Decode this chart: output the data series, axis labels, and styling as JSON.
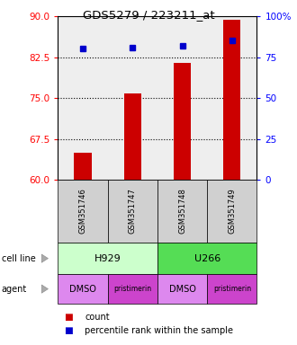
{
  "title": "GDS5279 / 223211_at",
  "samples": [
    "GSM351746",
    "GSM351747",
    "GSM351748",
    "GSM351749"
  ],
  "bar_values": [
    65.0,
    75.8,
    81.5,
    89.3
  ],
  "dot_percentiles": [
    80,
    81,
    82,
    85
  ],
  "bar_color": "#cc0000",
  "dot_color": "#0000cc",
  "ylim_left": [
    60,
    90
  ],
  "ylim_right": [
    0,
    100
  ],
  "yticks_left": [
    60,
    67.5,
    75,
    82.5,
    90
  ],
  "yticks_right": [
    0,
    25,
    50,
    75,
    100
  ],
  "ytick_labels_right": [
    "0",
    "25",
    "50",
    "75",
    "100%"
  ],
  "cell_line_labels": [
    "H929",
    "U266"
  ],
  "cell_line_colors": [
    "#ccffcc",
    "#55dd55"
  ],
  "agent_labels": [
    "DMSO",
    "pristimerin",
    "DMSO",
    "pristimerin"
  ],
  "agent_colors": [
    "#dd88ee",
    "#cc44cc",
    "#dd88ee",
    "#cc44cc"
  ],
  "sample_box_color": "#d0d0d0",
  "bg_color": "#ffffff",
  "plot_bg_color": "#eeeeee",
  "bar_width": 0.35,
  "x_positions": [
    1,
    2,
    3,
    4
  ]
}
